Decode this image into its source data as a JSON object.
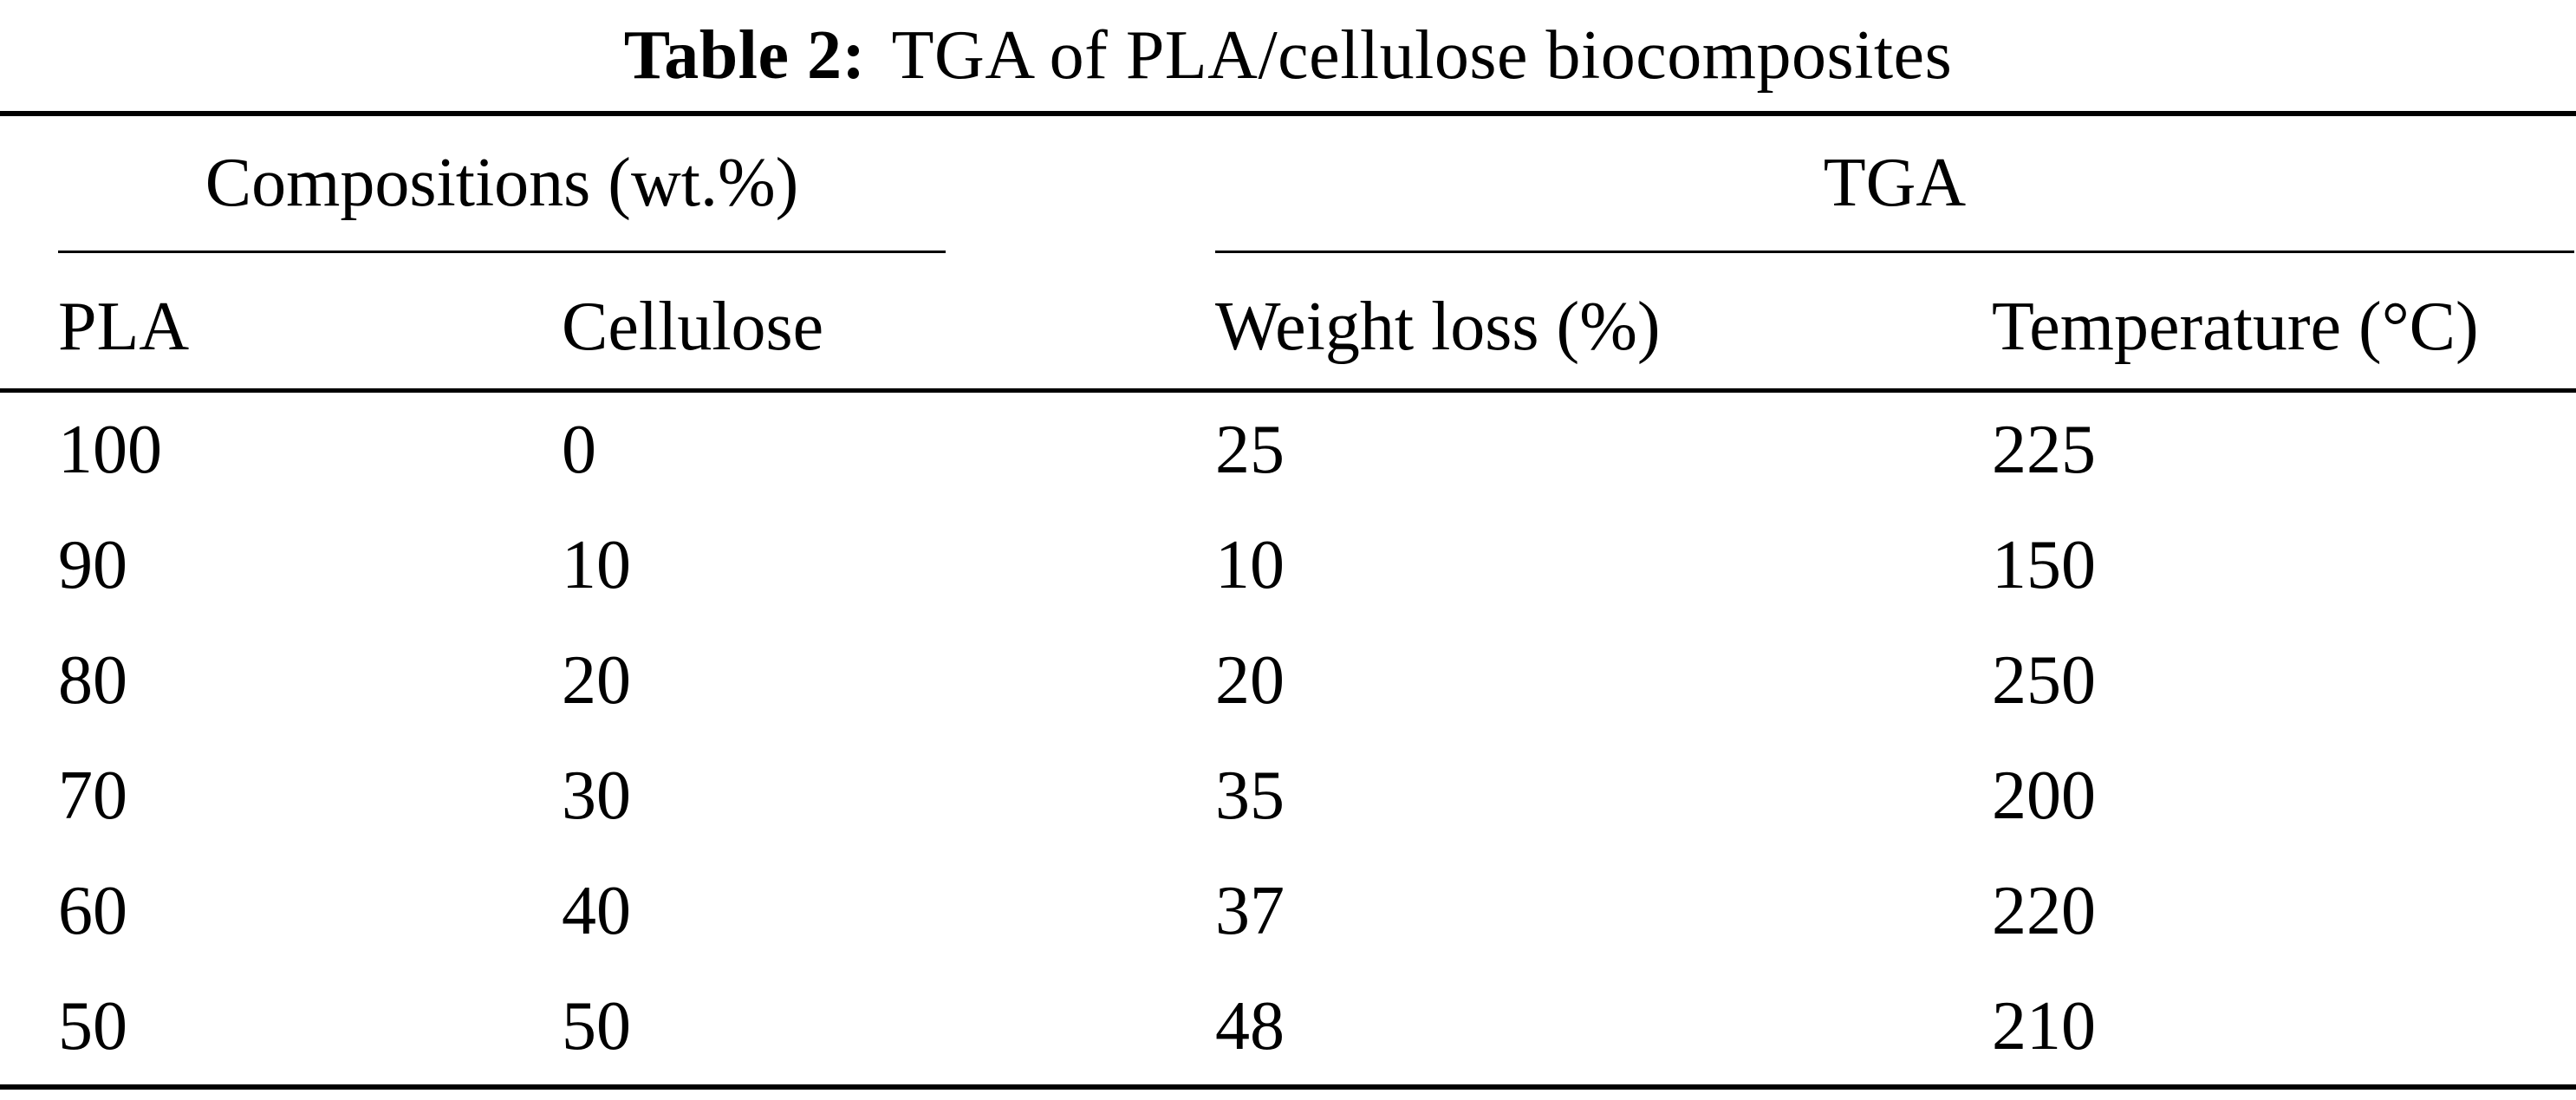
{
  "caption": {
    "label": "Table 2:",
    "text": "TGA of PLA/cellulose biocomposites"
  },
  "table": {
    "group_headers": {
      "compositions": "Compositions (wt.%)",
      "tga": "TGA"
    },
    "column_headers": [
      "PLA",
      "Cellulose",
      "Weight loss (%)",
      "Temperature (°C)"
    ],
    "rows": [
      [
        "100",
        "0",
        "25",
        "225"
      ],
      [
        "90",
        "10",
        "10",
        "150"
      ],
      [
        "80",
        "20",
        "20",
        "250"
      ],
      [
        "70",
        "30",
        "35",
        "200"
      ],
      [
        "60",
        "40",
        "37",
        "220"
      ],
      [
        "50",
        "50",
        "48",
        "210"
      ]
    ]
  },
  "colors": {
    "background": "#ffffff",
    "text": "#000000",
    "rule": "#000000"
  }
}
